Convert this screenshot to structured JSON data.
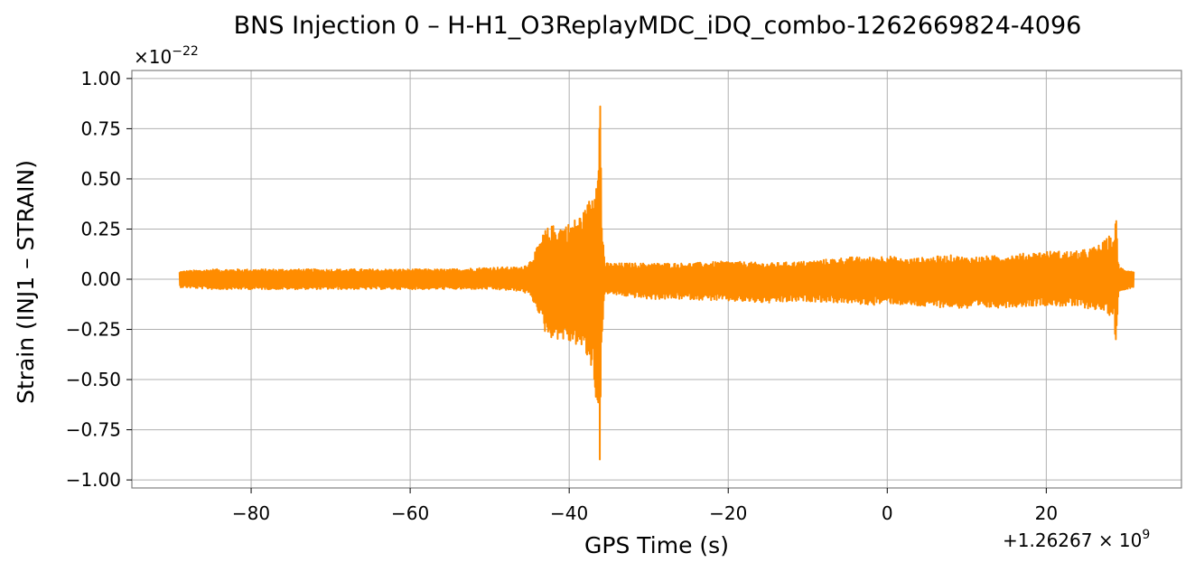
{
  "chart_data": {
    "type": "line",
    "title": "BNS Injection 0 – H-H1_O3ReplayMDC_iDQ_combo-1262669824-4096",
    "xlabel": "GPS Time (s)",
    "ylabel": "Strain (INJ1 – STRAIN)",
    "x_offset_label": "+1.26267 × 10",
    "x_offset_exponent": "9",
    "y_scale_label": "×10",
    "y_scale_exponent": "−22",
    "xlim": [
      -95,
      37
    ],
    "ylim": [
      -1.04,
      1.04
    ],
    "xticks": [
      -80,
      -60,
      -40,
      -20,
      0,
      20
    ],
    "xtick_labels": [
      "−80",
      "−60",
      "−40",
      "−20",
      "0",
      "20"
    ],
    "yticks": [
      1.0,
      0.75,
      0.5,
      0.25,
      0.0,
      -0.25,
      -0.5,
      -0.75,
      -1.0
    ],
    "ytick_labels": [
      "1.00",
      "0.75",
      "0.50",
      "0.25",
      "0.00",
      "−0.25",
      "−0.50",
      "−0.75",
      "−1.00"
    ],
    "grid": true,
    "series": [
      {
        "color": "#ff8c00",
        "x": [
          -89,
          -85,
          -80,
          -75,
          -70,
          -65,
          -60,
          -55,
          -50,
          -46,
          -45,
          -44,
          -43,
          -42,
          -41,
          -40,
          -39,
          -38,
          -37.5,
          -37,
          -36.6,
          -36.3,
          -36.1,
          -35.9,
          -35.5,
          -34,
          -30,
          -25,
          -20,
          -15,
          -10,
          -5,
          -2,
          0,
          2,
          5,
          8,
          10,
          15,
          20,
          24,
          26,
          27,
          28,
          28.5,
          28.8,
          29.0,
          29.3,
          30,
          31
        ],
        "upper": [
          0.04,
          0.05,
          0.05,
          0.05,
          0.05,
          0.05,
          0.05,
          0.05,
          0.06,
          0.06,
          0.09,
          0.16,
          0.25,
          0.27,
          0.27,
          0.28,
          0.31,
          0.35,
          0.4,
          0.45,
          0.56,
          0.8,
          0.95,
          0.3,
          0.08,
          0.08,
          0.08,
          0.08,
          0.09,
          0.08,
          0.09,
          0.11,
          0.11,
          0.12,
          0.1,
          0.11,
          0.12,
          0.11,
          0.12,
          0.14,
          0.14,
          0.16,
          0.18,
          0.22,
          0.2,
          0.32,
          0.1,
          0.06,
          0.05,
          0.04
        ],
        "lower": [
          -0.04,
          -0.05,
          -0.05,
          -0.05,
          -0.05,
          -0.05,
          -0.05,
          -0.05,
          -0.05,
          -0.06,
          -0.08,
          -0.15,
          -0.27,
          -0.3,
          -0.3,
          -0.32,
          -0.33,
          -0.37,
          -0.43,
          -0.47,
          -0.62,
          -0.82,
          -0.94,
          -0.3,
          -0.07,
          -0.08,
          -0.1,
          -0.1,
          -0.11,
          -0.12,
          -0.11,
          -0.12,
          -0.13,
          -0.12,
          -0.13,
          -0.14,
          -0.14,
          -0.15,
          -0.14,
          -0.13,
          -0.14,
          -0.15,
          -0.16,
          -0.18,
          -0.17,
          -0.4,
          -0.1,
          -0.06,
          -0.05,
          -0.04
        ]
      }
    ]
  }
}
